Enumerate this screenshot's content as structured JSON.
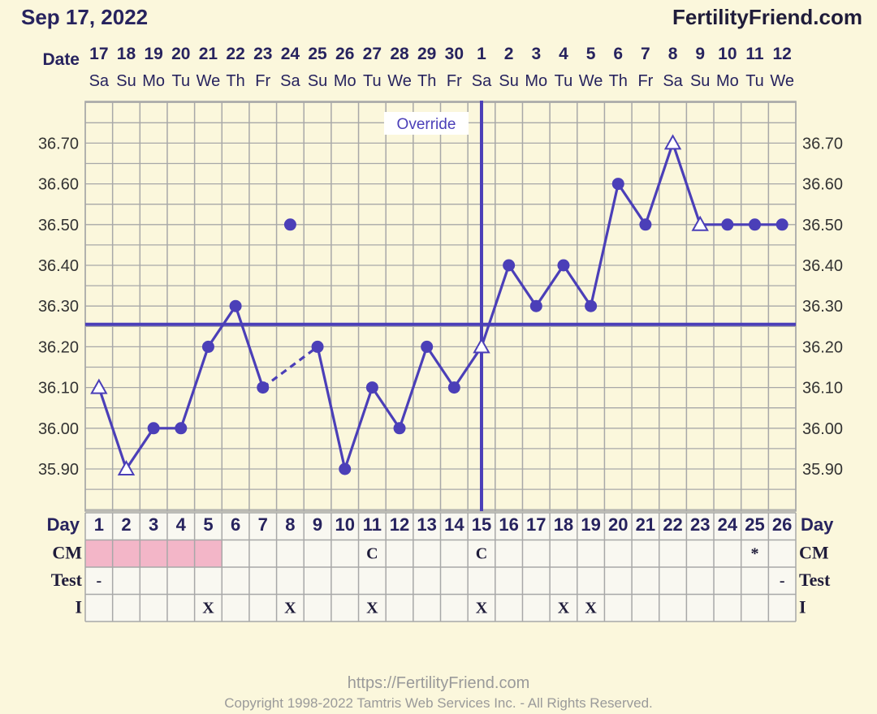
{
  "header": {
    "date": "Sep 17, 2022",
    "site": "FertilityFriend.com"
  },
  "footer": {
    "url": "https://FertilityFriend.com",
    "copyright": "Copyright 1998-2022 Tamtris Web Services Inc. - All Rights Reserved."
  },
  "colors": {
    "line": "#4b3fb8",
    "grid": "#a8a8a8",
    "background": "#fbf7dc",
    "period": "#f3b6c8"
  },
  "chart_data": {
    "type": "line",
    "date_label": "Date",
    "day_label": "Day",
    "dates": [
      "17",
      "18",
      "19",
      "20",
      "21",
      "22",
      "23",
      "24",
      "25",
      "26",
      "27",
      "28",
      "29",
      "30",
      "1",
      "2",
      "3",
      "4",
      "5",
      "6",
      "7",
      "8",
      "9",
      "10",
      "11",
      "12"
    ],
    "weekdays": [
      "Sa",
      "Su",
      "Mo",
      "Tu",
      "We",
      "Th",
      "Fr",
      "Sa",
      "Su",
      "Mo",
      "Tu",
      "We",
      "Th",
      "Fr",
      "Sa",
      "Su",
      "Mo",
      "Tu",
      "We",
      "Th",
      "Fr",
      "Sa",
      "Su",
      "Mo",
      "Tu",
      "We"
    ],
    "cycle_days": [
      1,
      2,
      3,
      4,
      5,
      6,
      7,
      8,
      9,
      10,
      11,
      12,
      13,
      14,
      15,
      16,
      17,
      18,
      19,
      20,
      21,
      22,
      23,
      24,
      25,
      26
    ],
    "temperatures": [
      36.1,
      35.9,
      36.0,
      36.0,
      36.2,
      36.3,
      36.1,
      36.5,
      36.2,
      35.9,
      36.1,
      36.0,
      36.2,
      36.1,
      36.2,
      36.4,
      36.3,
      36.4,
      36.3,
      36.6,
      36.5,
      36.7,
      36.5,
      36.5,
      36.5,
      36.5
    ],
    "open_markers": [
      1,
      2,
      15,
      22,
      23
    ],
    "discarded_days": [
      8
    ],
    "dashed_segment": [
      7,
      9
    ],
    "coverline": 36.255,
    "ovulation_day": 15,
    "ovulation_label": "Override",
    "ylim": [
      35.8,
      36.8
    ],
    "yticks": [
      "35.90",
      "36.00",
      "36.10",
      "36.20",
      "36.30",
      "36.40",
      "36.50",
      "36.60",
      "36.70"
    ],
    "rows": [
      {
        "name": "CM",
        "cells": {
          "11": "C",
          "15": "C",
          "25": "*"
        },
        "period_days": [
          1,
          2,
          3,
          4,
          5
        ]
      },
      {
        "name": "Test",
        "cells": {
          "1": "-",
          "26": "-"
        }
      },
      {
        "name": "I",
        "cells": {
          "5": "X",
          "8": "X",
          "11": "X",
          "15": "X",
          "18": "X",
          "19": "X"
        }
      }
    ]
  }
}
